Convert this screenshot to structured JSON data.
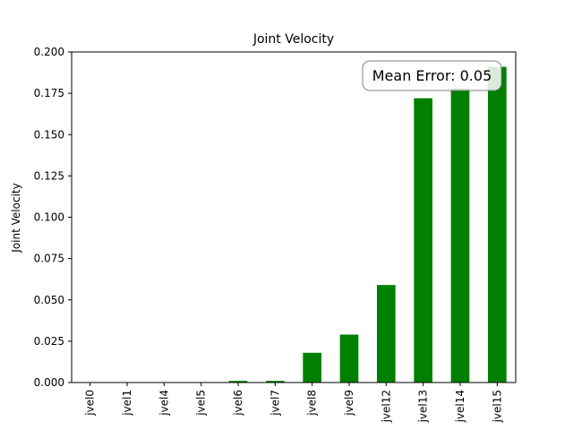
{
  "chart_data": {
    "type": "bar",
    "title": "Joint Velocity",
    "xlabel": "",
    "ylabel": "Joint Velocity",
    "categories": [
      "jvel0",
      "jvel1",
      "jvel4",
      "jvel5",
      "jvel6",
      "jvel7",
      "jvel8",
      "jvel9",
      "jvel12",
      "jvel13",
      "jvel14",
      "jvel15"
    ],
    "values": [
      0.0,
      0.0,
      0.0,
      0.0,
      0.001,
      0.001,
      0.018,
      0.029,
      0.059,
      0.172,
      0.178,
      0.191
    ],
    "ylim": [
      0,
      0.2
    ],
    "yticks": [
      "0.000",
      "0.025",
      "0.050",
      "0.075",
      "0.100",
      "0.125",
      "0.150",
      "0.175",
      "0.200"
    ],
    "bar_color": "#008000",
    "grid": false,
    "annotation": "Mean Error: 0.05"
  }
}
